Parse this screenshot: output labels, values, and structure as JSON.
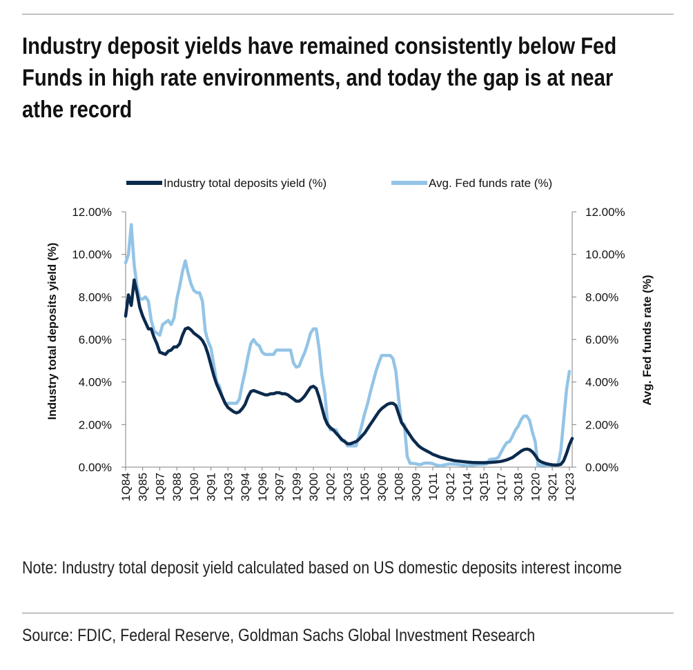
{
  "header": {
    "title": "Industry deposit yields have remained consistently below Fed Funds in high rate environments, and today the gap is at near athe record"
  },
  "footer": {
    "note": "Note: Industry total deposit yield calculated based on US domestic deposits interest income",
    "source": "Source: FDIC, Federal Reserve, Goldman Sachs Global Investment Research"
  },
  "colors": {
    "deposits": "#0b2a4d",
    "fedfunds": "#93c4e6"
  },
  "chart_data": {
    "type": "line",
    "title": "",
    "legend_position": "top",
    "xlabel": "",
    "ylabel_left": "Industry total deposits yield (%)",
    "ylabel_right": "Avg. Fed funds rate (%)",
    "ylim": [
      0,
      12
    ],
    "y_ticks": [
      "0.00%",
      "2.00%",
      "4.00%",
      "6.00%",
      "8.00%",
      "10.00%",
      "12.00%"
    ],
    "x_start": "1Q84",
    "x_end": "2Q23",
    "x_tick_labels": [
      "1Q84",
      "3Q85",
      "1Q87",
      "3Q88",
      "1Q90",
      "3Q91",
      "1Q93",
      "3Q94",
      "1Q96",
      "3Q97",
      "1Q99",
      "3Q00",
      "1Q02",
      "3Q03",
      "1Q05",
      "3Q06",
      "1Q08",
      "3Q09",
      "1Q11",
      "3Q12",
      "1Q14",
      "3Q15",
      "1Q17",
      "3Q18",
      "1Q20",
      "3Q21",
      "1Q23"
    ],
    "series": [
      {
        "name": "Industry total deposits yield (%)",
        "axis": "left",
        "points": [
          [
            1984.0,
            7.1
          ],
          [
            1984.25,
            8.1
          ],
          [
            1984.5,
            7.6
          ],
          [
            1984.75,
            8.8
          ],
          [
            1985.0,
            8.2
          ],
          [
            1985.25,
            7.5
          ],
          [
            1985.5,
            7.1
          ],
          [
            1985.75,
            6.8
          ],
          [
            1986.0,
            6.5
          ],
          [
            1986.25,
            6.5
          ],
          [
            1986.5,
            6.1
          ],
          [
            1986.75,
            5.8
          ],
          [
            1987.0,
            5.4
          ],
          [
            1987.25,
            5.35
          ],
          [
            1987.5,
            5.3
          ],
          [
            1987.75,
            5.45
          ],
          [
            1988.0,
            5.5
          ],
          [
            1988.25,
            5.65
          ],
          [
            1988.5,
            5.65
          ],
          [
            1988.75,
            5.8
          ],
          [
            1989.0,
            6.2
          ],
          [
            1989.25,
            6.5
          ],
          [
            1989.5,
            6.55
          ],
          [
            1989.75,
            6.45
          ],
          [
            1990.0,
            6.3
          ],
          [
            1990.25,
            6.2
          ],
          [
            1990.5,
            6.1
          ],
          [
            1990.75,
            5.95
          ],
          [
            1991.0,
            5.7
          ],
          [
            1991.25,
            5.3
          ],
          [
            1991.5,
            4.8
          ],
          [
            1991.75,
            4.3
          ],
          [
            1992.0,
            3.9
          ],
          [
            1992.25,
            3.6
          ],
          [
            1992.5,
            3.3
          ],
          [
            1992.75,
            3.0
          ],
          [
            1993.0,
            2.8
          ],
          [
            1993.25,
            2.7
          ],
          [
            1993.5,
            2.6
          ],
          [
            1993.75,
            2.55
          ],
          [
            1994.0,
            2.6
          ],
          [
            1994.25,
            2.75
          ],
          [
            1994.5,
            2.95
          ],
          [
            1994.75,
            3.3
          ],
          [
            1995.0,
            3.55
          ],
          [
            1995.25,
            3.6
          ],
          [
            1995.5,
            3.55
          ],
          [
            1995.75,
            3.5
          ],
          [
            1996.0,
            3.45
          ],
          [
            1996.25,
            3.4
          ],
          [
            1996.5,
            3.4
          ],
          [
            1996.75,
            3.45
          ],
          [
            1997.0,
            3.45
          ],
          [
            1997.25,
            3.5
          ],
          [
            1997.5,
            3.5
          ],
          [
            1997.75,
            3.45
          ],
          [
            1998.0,
            3.45
          ],
          [
            1998.25,
            3.4
          ],
          [
            1998.5,
            3.3
          ],
          [
            1998.75,
            3.2
          ],
          [
            1999.0,
            3.1
          ],
          [
            1999.25,
            3.1
          ],
          [
            1999.5,
            3.2
          ],
          [
            1999.75,
            3.35
          ],
          [
            2000.0,
            3.55
          ],
          [
            2000.25,
            3.75
          ],
          [
            2000.5,
            3.8
          ],
          [
            2000.75,
            3.7
          ],
          [
            2001.0,
            3.3
          ],
          [
            2001.25,
            2.8
          ],
          [
            2001.5,
            2.3
          ],
          [
            2001.75,
            2.0
          ],
          [
            2002.0,
            1.85
          ],
          [
            2002.25,
            1.75
          ],
          [
            2002.5,
            1.6
          ],
          [
            2002.75,
            1.45
          ],
          [
            2003.0,
            1.3
          ],
          [
            2003.25,
            1.2
          ],
          [
            2003.5,
            1.1
          ],
          [
            2003.75,
            1.1
          ],
          [
            2004.0,
            1.15
          ],
          [
            2004.25,
            1.2
          ],
          [
            2004.5,
            1.3
          ],
          [
            2004.75,
            1.45
          ],
          [
            2005.0,
            1.6
          ],
          [
            2005.25,
            1.8
          ],
          [
            2005.5,
            2.0
          ],
          [
            2005.75,
            2.2
          ],
          [
            2006.0,
            2.4
          ],
          [
            2006.25,
            2.6
          ],
          [
            2006.5,
            2.75
          ],
          [
            2006.75,
            2.85
          ],
          [
            2007.0,
            2.95
          ],
          [
            2007.25,
            3.0
          ],
          [
            2007.5,
            3.0
          ],
          [
            2007.75,
            2.9
          ],
          [
            2008.0,
            2.5
          ],
          [
            2008.25,
            2.1
          ],
          [
            2008.5,
            1.9
          ],
          [
            2008.75,
            1.7
          ],
          [
            2009.0,
            1.5
          ],
          [
            2009.25,
            1.3
          ],
          [
            2009.5,
            1.15
          ],
          [
            2009.75,
            1.0
          ],
          [
            2010.0,
            0.9
          ],
          [
            2010.25,
            0.82
          ],
          [
            2010.5,
            0.75
          ],
          [
            2010.75,
            0.68
          ],
          [
            2011.0,
            0.6
          ],
          [
            2011.25,
            0.55
          ],
          [
            2011.5,
            0.5
          ],
          [
            2011.75,
            0.45
          ],
          [
            2012.0,
            0.42
          ],
          [
            2012.25,
            0.38
          ],
          [
            2012.5,
            0.35
          ],
          [
            2012.75,
            0.32
          ],
          [
            2013.0,
            0.3
          ],
          [
            2013.5,
            0.27
          ],
          [
            2014.0,
            0.24
          ],
          [
            2014.5,
            0.22
          ],
          [
            2015.0,
            0.21
          ],
          [
            2015.5,
            0.21
          ],
          [
            2016.0,
            0.22
          ],
          [
            2016.5,
            0.24
          ],
          [
            2017.0,
            0.27
          ],
          [
            2017.5,
            0.34
          ],
          [
            2018.0,
            0.45
          ],
          [
            2018.25,
            0.55
          ],
          [
            2018.5,
            0.65
          ],
          [
            2018.75,
            0.75
          ],
          [
            2019.0,
            0.82
          ],
          [
            2019.25,
            0.85
          ],
          [
            2019.5,
            0.82
          ],
          [
            2019.75,
            0.72
          ],
          [
            2020.0,
            0.55
          ],
          [
            2020.25,
            0.35
          ],
          [
            2020.5,
            0.25
          ],
          [
            2020.75,
            0.2
          ],
          [
            2021.0,
            0.16
          ],
          [
            2021.25,
            0.13
          ],
          [
            2021.5,
            0.11
          ],
          [
            2021.75,
            0.1
          ],
          [
            2022.0,
            0.1
          ],
          [
            2022.25,
            0.13
          ],
          [
            2022.5,
            0.3
          ],
          [
            2022.75,
            0.65
          ],
          [
            2023.0,
            1.05
          ],
          [
            2023.25,
            1.35
          ]
        ]
      },
      {
        "name": "Avg. Fed funds rate (%)",
        "axis": "right",
        "points": [
          [
            1984.0,
            9.6
          ],
          [
            1984.25,
            10.0
          ],
          [
            1984.5,
            11.4
          ],
          [
            1984.75,
            9.5
          ],
          [
            1985.0,
            8.5
          ],
          [
            1985.25,
            7.9
          ],
          [
            1985.5,
            7.9
          ],
          [
            1985.75,
            8.0
          ],
          [
            1986.0,
            7.8
          ],
          [
            1986.25,
            6.9
          ],
          [
            1986.5,
            6.4
          ],
          [
            1986.75,
            6.3
          ],
          [
            1987.0,
            6.2
          ],
          [
            1987.25,
            6.7
          ],
          [
            1987.5,
            6.8
          ],
          [
            1987.75,
            6.9
          ],
          [
            1988.0,
            6.7
          ],
          [
            1988.25,
            7.0
          ],
          [
            1988.5,
            7.9
          ],
          [
            1988.75,
            8.5
          ],
          [
            1989.0,
            9.2
          ],
          [
            1989.25,
            9.7
          ],
          [
            1989.5,
            9.1
          ],
          [
            1989.75,
            8.6
          ],
          [
            1990.0,
            8.3
          ],
          [
            1990.25,
            8.2
          ],
          [
            1990.5,
            8.2
          ],
          [
            1990.75,
            7.8
          ],
          [
            1991.0,
            6.4
          ],
          [
            1991.25,
            5.9
          ],
          [
            1991.5,
            5.6
          ],
          [
            1991.75,
            4.8
          ],
          [
            1992.0,
            4.0
          ],
          [
            1992.25,
            3.8
          ],
          [
            1992.5,
            3.3
          ],
          [
            1992.75,
            3.0
          ],
          [
            1993.0,
            3.0
          ],
          [
            1993.25,
            3.0
          ],
          [
            1993.5,
            3.0
          ],
          [
            1993.75,
            3.0
          ],
          [
            1994.0,
            3.2
          ],
          [
            1994.25,
            3.9
          ],
          [
            1994.5,
            4.5
          ],
          [
            1994.75,
            5.2
          ],
          [
            1995.0,
            5.8
          ],
          [
            1995.25,
            6.0
          ],
          [
            1995.5,
            5.8
          ],
          [
            1995.75,
            5.7
          ],
          [
            1996.0,
            5.4
          ],
          [
            1996.25,
            5.3
          ],
          [
            1996.5,
            5.3
          ],
          [
            1996.75,
            5.3
          ],
          [
            1997.0,
            5.3
          ],
          [
            1997.25,
            5.5
          ],
          [
            1997.5,
            5.5
          ],
          [
            1997.75,
            5.5
          ],
          [
            1998.0,
            5.5
          ],
          [
            1998.25,
            5.5
          ],
          [
            1998.5,
            5.5
          ],
          [
            1998.75,
            4.9
          ],
          [
            1999.0,
            4.7
          ],
          [
            1999.25,
            4.75
          ],
          [
            1999.5,
            5.1
          ],
          [
            1999.75,
            5.4
          ],
          [
            2000.0,
            5.8
          ],
          [
            2000.25,
            6.3
          ],
          [
            2000.5,
            6.5
          ],
          [
            2000.75,
            6.5
          ],
          [
            2001.0,
            5.6
          ],
          [
            2001.25,
            4.3
          ],
          [
            2001.5,
            3.5
          ],
          [
            2001.75,
            2.1
          ],
          [
            2002.0,
            1.75
          ],
          [
            2002.25,
            1.75
          ],
          [
            2002.5,
            1.75
          ],
          [
            2002.75,
            1.45
          ],
          [
            2003.0,
            1.25
          ],
          [
            2003.25,
            1.25
          ],
          [
            2003.5,
            1.0
          ],
          [
            2003.75,
            1.0
          ],
          [
            2004.0,
            1.0
          ],
          [
            2004.25,
            1.0
          ],
          [
            2004.5,
            1.45
          ],
          [
            2004.75,
            1.95
          ],
          [
            2005.0,
            2.5
          ],
          [
            2005.25,
            2.95
          ],
          [
            2005.5,
            3.5
          ],
          [
            2005.75,
            4.0
          ],
          [
            2006.0,
            4.5
          ],
          [
            2006.25,
            4.9
          ],
          [
            2006.5,
            5.25
          ],
          [
            2006.75,
            5.25
          ],
          [
            2007.0,
            5.25
          ],
          [
            2007.25,
            5.25
          ],
          [
            2007.5,
            5.1
          ],
          [
            2007.75,
            4.5
          ],
          [
            2008.0,
            3.2
          ],
          [
            2008.25,
            2.1
          ],
          [
            2008.5,
            2.0
          ],
          [
            2008.75,
            0.5
          ],
          [
            2009.0,
            0.18
          ],
          [
            2009.25,
            0.18
          ],
          [
            2009.5,
            0.16
          ],
          [
            2009.75,
            0.12
          ],
          [
            2010.0,
            0.13
          ],
          [
            2010.25,
            0.19
          ],
          [
            2010.5,
            0.19
          ],
          [
            2010.75,
            0.19
          ],
          [
            2011.0,
            0.16
          ],
          [
            2011.25,
            0.1
          ],
          [
            2011.5,
            0.08
          ],
          [
            2011.75,
            0.07
          ],
          [
            2012.0,
            0.1
          ],
          [
            2012.5,
            0.15
          ],
          [
            2013.0,
            0.14
          ],
          [
            2013.5,
            0.1
          ],
          [
            2014.0,
            0.07
          ],
          [
            2014.5,
            0.09
          ],
          [
            2015.0,
            0.12
          ],
          [
            2015.5,
            0.13
          ],
          [
            2015.75,
            0.16
          ],
          [
            2016.0,
            0.36
          ],
          [
            2016.5,
            0.39
          ],
          [
            2016.75,
            0.45
          ],
          [
            2017.0,
            0.7
          ],
          [
            2017.25,
            0.95
          ],
          [
            2017.5,
            1.15
          ],
          [
            2017.75,
            1.2
          ],
          [
            2018.0,
            1.45
          ],
          [
            2018.25,
            1.74
          ],
          [
            2018.5,
            1.92
          ],
          [
            2018.75,
            2.22
          ],
          [
            2019.0,
            2.4
          ],
          [
            2019.25,
            2.4
          ],
          [
            2019.5,
            2.2
          ],
          [
            2019.75,
            1.65
          ],
          [
            2020.0,
            1.2
          ],
          [
            2020.25,
            0.06
          ],
          [
            2020.5,
            0.09
          ],
          [
            2020.75,
            0.09
          ],
          [
            2021.0,
            0.08
          ],
          [
            2021.25,
            0.07
          ],
          [
            2021.5,
            0.09
          ],
          [
            2021.75,
            0.08
          ],
          [
            2022.0,
            0.12
          ],
          [
            2022.25,
            0.77
          ],
          [
            2022.5,
            2.2
          ],
          [
            2022.75,
            3.65
          ],
          [
            2023.0,
            4.5
          ]
        ]
      }
    ]
  }
}
